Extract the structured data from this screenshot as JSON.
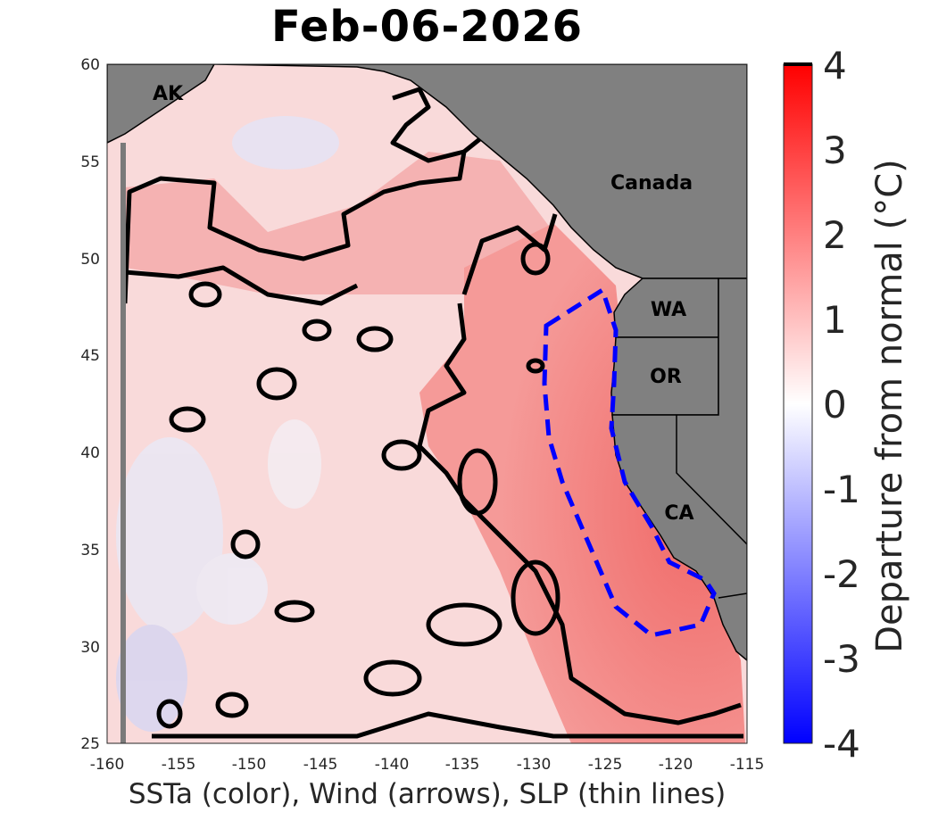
{
  "title": "Feb-06-2026",
  "xlabel": "SSTa (color), Wind (arrows), SLP (thin lines)",
  "colorbar": {
    "label": "Departure from normal (°C)",
    "ticks": [
      "4",
      "3",
      "2",
      "1",
      "0",
      "-1",
      "-2",
      "-3",
      "-4"
    ],
    "min": -4,
    "max": 4,
    "colors": {
      "low": "#0000ff",
      "mid": "#ffffff",
      "high": "#ff0000"
    }
  },
  "axes": {
    "lon_ticks": [
      "-160",
      "-155",
      "-150",
      "-145",
      "-140",
      "-135",
      "-130",
      "-125",
      "-120",
      "-115"
    ],
    "lat_ticks": [
      "60",
      "55",
      "50",
      "45",
      "40",
      "35",
      "30",
      "25"
    ],
    "lon_range": [
      -160,
      -115
    ],
    "lat_range": [
      25,
      60
    ]
  },
  "regions": {
    "ak": "AK",
    "canada": "Canada",
    "wa": "WA",
    "or": "OR",
    "ca": "CA"
  },
  "colors": {
    "land": "#808080",
    "ocean_warm": "#f6c6c6",
    "coastal_warm": "#f07a78",
    "outline_box": "#0000ff",
    "contours": "#000000"
  }
}
